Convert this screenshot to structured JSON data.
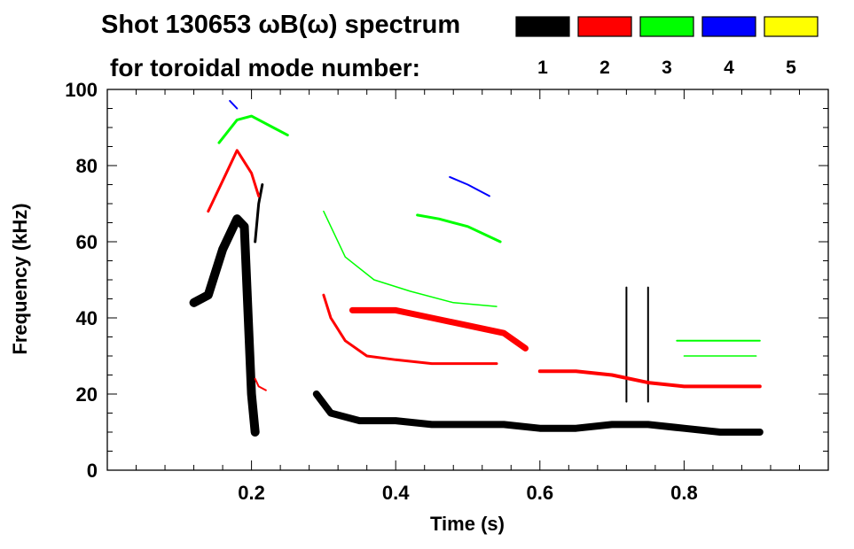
{
  "chart_data": {
    "type": "spectrogram",
    "title_line1": "Shot 130653 ωB(ω) spectrum",
    "title_line2": "for toroidal mode number:",
    "xlabel": "Time (s)",
    "ylabel": "Frequency (kHz)",
    "xlim": [
      0.0,
      1.0
    ],
    "ylim": [
      0,
      100
    ],
    "xticks": [
      {
        "v": 0.2,
        "label": "0.2"
      },
      {
        "v": 0.4,
        "label": "0.4"
      },
      {
        "v": 0.6,
        "label": "0.6"
      },
      {
        "v": 0.8,
        "label": "0.8"
      }
    ],
    "yticks": [
      {
        "v": 0,
        "label": "0"
      },
      {
        "v": 20,
        "label": "20"
      },
      {
        "v": 40,
        "label": "40"
      },
      {
        "v": 60,
        "label": "60"
      },
      {
        "v": 80,
        "label": "80"
      },
      {
        "v": 100,
        "label": "100"
      }
    ],
    "legend": [
      {
        "label": "1",
        "color": "#000000"
      },
      {
        "label": "2",
        "color": "#ff0000"
      },
      {
        "label": "3",
        "color": "#00ff00"
      },
      {
        "label": "4",
        "color": "#0000ff"
      },
      {
        "label": "5",
        "color": "#ffff00"
      }
    ],
    "series": [
      {
        "name": "n=1",
        "color": "#000000",
        "segments": [
          {
            "pts": [
              [
                0.12,
                44
              ],
              [
                0.14,
                46
              ],
              [
                0.16,
                58
              ],
              [
                0.18,
                66
              ],
              [
                0.19,
                64
              ],
              [
                0.2,
                20
              ],
              [
                0.205,
                10
              ]
            ],
            "w": 10
          },
          {
            "pts": [
              [
                0.205,
                60
              ],
              [
                0.21,
                70
              ],
              [
                0.215,
                75
              ]
            ],
            "w": 3
          },
          {
            "pts": [
              [
                0.29,
                20
              ],
              [
                0.31,
                15
              ],
              [
                0.35,
                13
              ],
              [
                0.4,
                13
              ],
              [
                0.45,
                12
              ],
              [
                0.5,
                12
              ],
              [
                0.55,
                12
              ],
              [
                0.6,
                11
              ],
              [
                0.65,
                11
              ],
              [
                0.7,
                12
              ],
              [
                0.75,
                12
              ],
              [
                0.8,
                11
              ],
              [
                0.85,
                10
              ],
              [
                0.905,
                10
              ]
            ],
            "w": 8
          },
          {
            "pts": [
              [
                0.72,
                48
              ],
              [
                0.72,
                18
              ]
            ],
            "w": 2
          },
          {
            "pts": [
              [
                0.75,
                48
              ],
              [
                0.75,
                18
              ]
            ],
            "w": 2
          }
        ]
      },
      {
        "name": "n=2",
        "color": "#ff0000",
        "segments": [
          {
            "pts": [
              [
                0.14,
                68
              ],
              [
                0.16,
                76
              ],
              [
                0.18,
                84
              ],
              [
                0.2,
                78
              ],
              [
                0.21,
                72
              ]
            ],
            "w": 3
          },
          {
            "pts": [
              [
                0.205,
                24
              ],
              [
                0.21,
                22
              ],
              [
                0.22,
                21
              ]
            ],
            "w": 2
          },
          {
            "pts": [
              [
                0.3,
                46
              ],
              [
                0.31,
                40
              ],
              [
                0.33,
                34
              ],
              [
                0.36,
                30
              ],
              [
                0.4,
                29
              ],
              [
                0.45,
                28
              ],
              [
                0.5,
                28
              ],
              [
                0.54,
                28
              ]
            ],
            "w": 3
          },
          {
            "pts": [
              [
                0.34,
                42
              ],
              [
                0.4,
                42
              ],
              [
                0.45,
                40
              ],
              [
                0.5,
                38
              ],
              [
                0.55,
                36
              ],
              [
                0.58,
                32
              ]
            ],
            "w": 7
          },
          {
            "pts": [
              [
                0.6,
                26
              ],
              [
                0.65,
                26
              ],
              [
                0.7,
                25
              ],
              [
                0.75,
                23
              ],
              [
                0.8,
                22
              ],
              [
                0.85,
                22
              ],
              [
                0.905,
                22
              ]
            ],
            "w": 4
          }
        ]
      },
      {
        "name": "n=3",
        "color": "#00ff00",
        "segments": [
          {
            "pts": [
              [
                0.155,
                86
              ],
              [
                0.18,
                92
              ],
              [
                0.2,
                93
              ],
              [
                0.23,
                90
              ],
              [
                0.25,
                88
              ]
            ],
            "w": 3
          },
          {
            "pts": [
              [
                0.3,
                68
              ],
              [
                0.33,
                56
              ],
              [
                0.37,
                50
              ],
              [
                0.42,
                47
              ],
              [
                0.48,
                44
              ],
              [
                0.54,
                43
              ]
            ],
            "w": 1.5
          },
          {
            "pts": [
              [
                0.43,
                67
              ],
              [
                0.46,
                66
              ],
              [
                0.5,
                64
              ],
              [
                0.545,
                60
              ]
            ],
            "w": 3
          },
          {
            "pts": [
              [
                0.79,
                34
              ],
              [
                0.82,
                34
              ],
              [
                0.86,
                34
              ],
              [
                0.905,
                34
              ]
            ],
            "w": 2
          },
          {
            "pts": [
              [
                0.8,
                30
              ],
              [
                0.85,
                30
              ],
              [
                0.9,
                30
              ]
            ],
            "w": 1.5
          }
        ]
      },
      {
        "name": "n=4",
        "color": "#0000ff",
        "segments": [
          {
            "pts": [
              [
                0.17,
                97
              ],
              [
                0.18,
                95
              ]
            ],
            "w": 2
          },
          {
            "pts": [
              [
                0.475,
                77
              ],
              [
                0.5,
                75
              ],
              [
                0.53,
                72
              ]
            ],
            "w": 2
          }
        ]
      },
      {
        "name": "n=5",
        "color": "#ffff00",
        "segments": []
      }
    ]
  }
}
